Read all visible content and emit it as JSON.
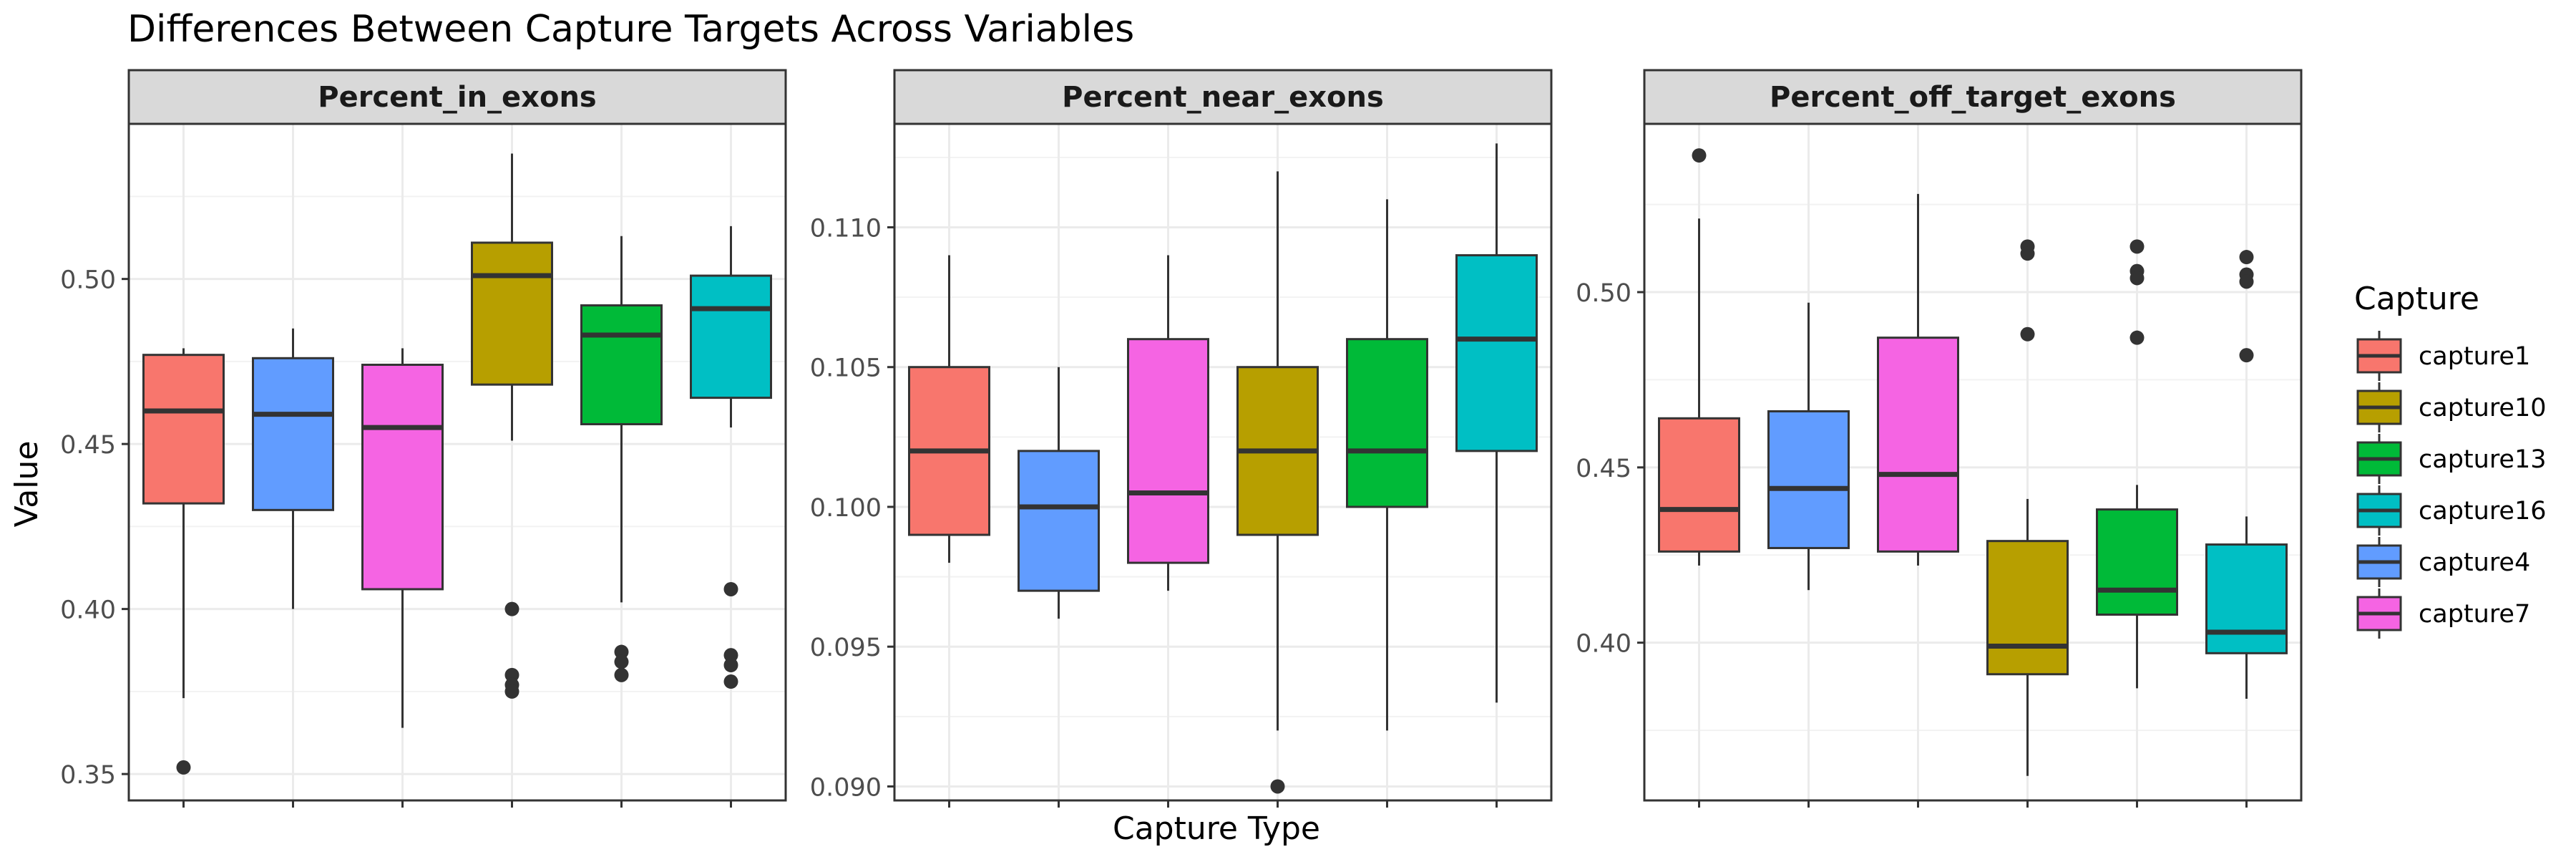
{
  "chart_data": {
    "type": "boxplot",
    "title": "Differences Between Capture Targets Across Variables",
    "xlabel": "Capture Type",
    "ylabel": "Value",
    "legend": {
      "title": "Capture",
      "placement": "right",
      "entries": [
        {
          "label": "capture1",
          "color": "#F8766D"
        },
        {
          "label": "capture10",
          "color": "#B79F00"
        },
        {
          "label": "capture13",
          "color": "#00BA38"
        },
        {
          "label": "capture16",
          "color": "#00BFC4"
        },
        {
          "label": "capture4",
          "color": "#619CFF"
        },
        {
          "label": "capture7",
          "color": "#F564E3"
        }
      ]
    },
    "grid": true,
    "panels": [
      {
        "name": "Percent_in_exons",
        "ylim": [
          0.342,
          0.547
        ],
        "yticks": [
          0.35,
          0.4,
          0.45,
          0.5
        ],
        "ytick_labels": [
          "0.35",
          "0.40",
          "0.45",
          "0.50"
        ],
        "boxes": [
          {
            "capture": "capture1",
            "min": 0.373,
            "q1": 0.432,
            "median": 0.46,
            "q3": 0.477,
            "max": 0.479,
            "outliers": [
              0.352
            ]
          },
          {
            "capture": "capture4",
            "min": 0.4,
            "q1": 0.43,
            "median": 0.459,
            "q3": 0.476,
            "max": 0.485,
            "outliers": []
          },
          {
            "capture": "capture7",
            "min": 0.364,
            "q1": 0.406,
            "median": 0.455,
            "q3": 0.474,
            "max": 0.479,
            "outliers": []
          },
          {
            "capture": "capture10",
            "min": 0.451,
            "q1": 0.468,
            "median": 0.501,
            "q3": 0.511,
            "max": 0.538,
            "outliers": [
              0.4,
              0.38,
              0.377,
              0.375
            ]
          },
          {
            "capture": "capture13",
            "min": 0.402,
            "q1": 0.456,
            "median": 0.483,
            "q3": 0.492,
            "max": 0.513,
            "outliers": [
              0.387,
              0.384,
              0.38
            ]
          },
          {
            "capture": "capture16",
            "min": 0.455,
            "q1": 0.464,
            "median": 0.491,
            "q3": 0.501,
            "max": 0.516,
            "outliers": [
              0.406,
              0.386,
              0.383,
              0.378
            ]
          }
        ]
      },
      {
        "name": "Percent_near_exons",
        "ylim": [
          0.0895,
          0.1137
        ],
        "yticks": [
          0.09,
          0.095,
          0.1,
          0.105,
          0.11
        ],
        "ytick_labels": [
          "0.090",
          "0.095",
          "0.100",
          "0.105",
          "0.110"
        ],
        "boxes": [
          {
            "capture": "capture1",
            "min": 0.098,
            "q1": 0.099,
            "median": 0.102,
            "q3": 0.105,
            "max": 0.109,
            "outliers": []
          },
          {
            "capture": "capture4",
            "min": 0.096,
            "q1": 0.097,
            "median": 0.1,
            "q3": 0.102,
            "max": 0.105,
            "outliers": []
          },
          {
            "capture": "capture7",
            "min": 0.097,
            "q1": 0.098,
            "median": 0.1005,
            "q3": 0.106,
            "max": 0.109,
            "outliers": []
          },
          {
            "capture": "capture10",
            "min": 0.092,
            "q1": 0.099,
            "median": 0.102,
            "q3": 0.105,
            "max": 0.112,
            "outliers": [
              0.09
            ]
          },
          {
            "capture": "capture13",
            "min": 0.092,
            "q1": 0.1,
            "median": 0.102,
            "q3": 0.106,
            "max": 0.111,
            "outliers": []
          },
          {
            "capture": "capture16",
            "min": 0.093,
            "q1": 0.102,
            "median": 0.106,
            "q3": 0.109,
            "max": 0.113,
            "outliers": []
          }
        ]
      },
      {
        "name": "Percent_off_target_exons",
        "ylim": [
          0.355,
          0.548
        ],
        "yticks": [
          0.4,
          0.45,
          0.5
        ],
        "ytick_labels": [
          "0.40",
          "0.45",
          "0.50"
        ],
        "boxes": [
          {
            "capture": "capture1",
            "min": 0.422,
            "q1": 0.426,
            "median": 0.438,
            "q3": 0.464,
            "max": 0.521,
            "outliers": [
              0.539
            ]
          },
          {
            "capture": "capture4",
            "min": 0.415,
            "q1": 0.427,
            "median": 0.444,
            "q3": 0.466,
            "max": 0.497,
            "outliers": []
          },
          {
            "capture": "capture7",
            "min": 0.422,
            "q1": 0.426,
            "median": 0.448,
            "q3": 0.487,
            "max": 0.528,
            "outliers": []
          },
          {
            "capture": "capture10",
            "min": 0.362,
            "q1": 0.391,
            "median": 0.399,
            "q3": 0.429,
            "max": 0.441,
            "outliers": [
              0.513,
              0.511,
              0.488
            ]
          },
          {
            "capture": "capture13",
            "min": 0.387,
            "q1": 0.408,
            "median": 0.415,
            "q3": 0.438,
            "max": 0.445,
            "outliers": [
              0.513,
              0.506,
              0.504,
              0.487
            ]
          },
          {
            "capture": "capture16",
            "min": 0.384,
            "q1": 0.397,
            "median": 0.403,
            "q3": 0.428,
            "max": 0.436,
            "outliers": [
              0.51,
              0.505,
              0.503,
              0.482
            ]
          }
        ]
      }
    ]
  }
}
